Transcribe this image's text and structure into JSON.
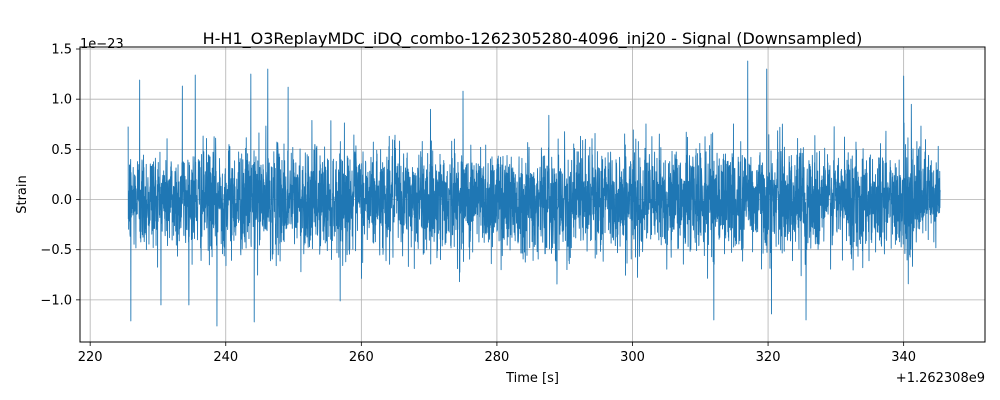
{
  "chart_data": {
    "type": "line",
    "title": "H-H1_O3ReplayMDC_iDQ_combo-1262305280-4096_inj20 - Signal (Downsampled)",
    "xlabel": "Time [s]",
    "ylabel": "Strain",
    "x_offset_label": "+1.262308e9",
    "y_scale_label": "1e−23",
    "xlim": [
      218.5,
      352
    ],
    "ylim": [
      -1.42,
      1.52
    ],
    "x_ticks": [
      220,
      240,
      260,
      280,
      300,
      320,
      340
    ],
    "x_tick_labels": [
      "220",
      "240",
      "260",
      "280",
      "300",
      "320",
      "340"
    ],
    "y_ticks": [
      -1.0,
      -0.5,
      0.0,
      0.5,
      1.0,
      1.5
    ],
    "y_tick_labels": [
      "−1.0",
      "−0.5",
      "0.0",
      "0.5",
      "1.0",
      "1.5"
    ],
    "grid": true,
    "series": [
      {
        "color": "#1f77b4",
        "x_range": [
          225.6,
          345.4
        ],
        "typical_envelope": [
          -0.55,
          0.55
        ],
        "peaks": [
          {
            "x": 226.0,
            "y": -1.21
          },
          {
            "x": 227.3,
            "y": 1.19
          },
          {
            "x": 233.6,
            "y": 1.13
          },
          {
            "x": 235.5,
            "y": 1.24
          },
          {
            "x": 238.7,
            "y": -1.26
          },
          {
            "x": 243.7,
            "y": 1.25
          },
          {
            "x": 246.2,
            "y": 1.3
          },
          {
            "x": 244.2,
            "y": -1.22
          },
          {
            "x": 249.2,
            "y": 1.12
          },
          {
            "x": 275.0,
            "y": 1.08
          },
          {
            "x": 312.0,
            "y": -1.2
          },
          {
            "x": 317.0,
            "y": 1.38
          },
          {
            "x": 319.8,
            "y": 1.3
          },
          {
            "x": 320.5,
            "y": -1.14
          },
          {
            "x": 325.6,
            "y": -1.2
          },
          {
            "x": 340.0,
            "y": 1.23
          }
        ]
      }
    ]
  }
}
